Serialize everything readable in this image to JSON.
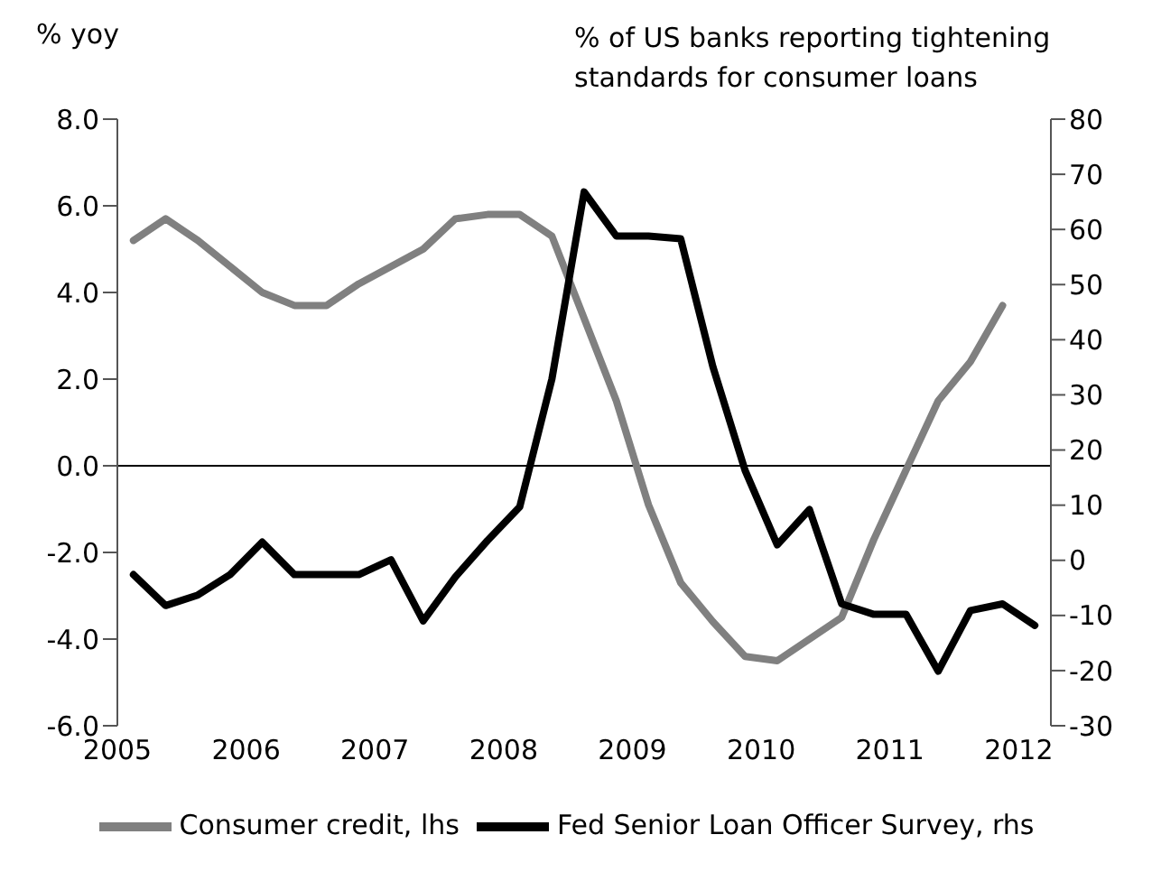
{
  "chart_data": {
    "type": "line",
    "ylabel": "% yoy",
    "y2label": "% of US banks reporting tightening standards for consumer loans",
    "xlim": [
      2005,
      2012.25
    ],
    "xticks": [
      2005,
      2006,
      2007,
      2008,
      2009,
      2010,
      2011,
      2012
    ],
    "ylim": [
      -6,
      8
    ],
    "yticks": [
      {
        "value": -6,
        "label": "-6.0"
      },
      {
        "value": -4,
        "label": "-4.0"
      },
      {
        "value": -2,
        "label": "-2.0"
      },
      {
        "value": 0,
        "label": "0.0"
      },
      {
        "value": 2,
        "label": "2.0"
      },
      {
        "value": 4,
        "label": "4.0"
      },
      {
        "value": 6,
        "label": "6.0"
      },
      {
        "value": 8,
        "label": "8.0"
      }
    ],
    "y2lim": [
      -30,
      80
    ],
    "y2ticks": [
      -30,
      -20,
      -10,
      0,
      10,
      20,
      30,
      40,
      50,
      60,
      70,
      80
    ],
    "ref_lines": [
      {
        "axis": "y",
        "value": 0,
        "color": "#000000"
      }
    ],
    "legend": "bottom",
    "series": [
      {
        "name": "Consumer credit, lhs",
        "color": "#808080",
        "x": [
          2005.125,
          2005.375,
          2005.625,
          2005.875,
          2006.125,
          2006.375,
          2006.625,
          2006.875,
          2007.125,
          2007.375,
          2007.625,
          2007.875,
          2008.125,
          2008.375,
          2008.625,
          2008.875,
          2009.125,
          2009.375,
          2009.625,
          2009.875,
          2010.125,
          2010.375,
          2010.625,
          2010.875,
          2011.125,
          2011.375,
          2011.625,
          2011.875
        ],
        "values": [
          5.2,
          5.7,
          5.2,
          4.6,
          4.0,
          3.7,
          3.7,
          4.2,
          4.6,
          5.0,
          5.7,
          5.8,
          5.8,
          5.3,
          3.4,
          1.5,
          -0.9,
          -2.7,
          -3.6,
          -4.4,
          -4.5,
          -4.0,
          -3.5,
          -1.7,
          -0.1,
          1.5,
          2.4,
          3.7
        ]
      },
      {
        "name": "Fed Senior Loan Officer Survey, rhs",
        "color": "#000000",
        "axis": "y2",
        "x": [
          2005.125,
          2005.375,
          2005.625,
          2005.875,
          2006.125,
          2006.375,
          2006.625,
          2006.875,
          2007.125,
          2007.375,
          2007.625,
          2007.875,
          2008.125,
          2008.375,
          2008.625,
          2008.875,
          2009.125,
          2009.375,
          2009.625,
          2009.875,
          2010.125,
          2010.375,
          2010.625,
          2010.875,
          2011.125,
          2011.375,
          2011.625,
          2011.875,
          2012.125
        ],
        "values": [
          -2.6,
          -8.2,
          -6.3,
          -2.6,
          3.3,
          -2.6,
          -2.6,
          -2.6,
          0.1,
          -11,
          -3,
          3.6,
          9.7,
          32.9,
          66.8,
          58.8,
          58.8,
          58.3,
          35.1,
          16.3,
          2.8,
          9.2,
          -7.9,
          -9.8,
          -9.8,
          -20.1,
          -9.1,
          -7.9,
          -11.8
        ]
      }
    ]
  }
}
